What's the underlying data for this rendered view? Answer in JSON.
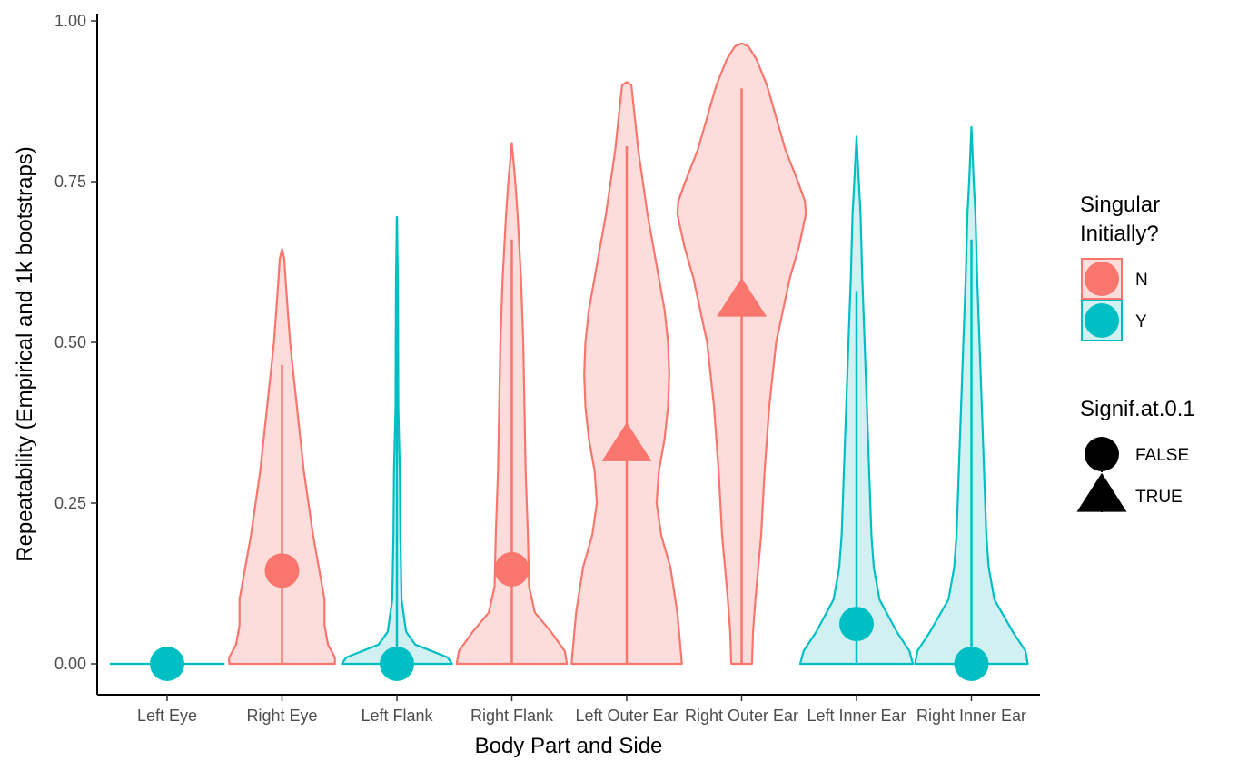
{
  "chart_data": {
    "type": "violin",
    "xlabel": "Body Part and Side",
    "ylabel": "Repeatability (Empirical and 1k bootstraps)",
    "ylim": [
      0,
      1
    ],
    "y_ticks": [
      "0.00",
      "0.25",
      "0.50",
      "0.75",
      "1.00"
    ],
    "y_tick_values": [
      0,
      0.25,
      0.5,
      0.75,
      1.0
    ],
    "categories": [
      "Left Eye",
      "Right Eye",
      "Left Flank",
      "Right Flank",
      "Left Outer Ear",
      "Right Outer Ear",
      "Left Inner Ear",
      "Right Inner Ear"
    ],
    "colors": {
      "N": "#F8766D",
      "Y": "#00BFC4",
      "N_fill": "#FCDDDB",
      "Y_fill": "#D0F0F1"
    },
    "groups": [
      {
        "category": "Left Eye",
        "singular": "Y",
        "signif": "FALSE",
        "empirical": 0.0,
        "boot_max": 0.0,
        "violin": [
          [
            0.0,
            0.5
          ]
        ]
      },
      {
        "category": "Right Eye",
        "singular": "N",
        "signif": "FALSE",
        "empirical": 0.145,
        "boot_max": 0.645,
        "line_top": 0.465,
        "violin": [
          [
            0.0,
            0.46
          ],
          [
            0.01,
            0.46
          ],
          [
            0.03,
            0.4
          ],
          [
            0.06,
            0.37
          ],
          [
            0.1,
            0.37
          ],
          [
            0.15,
            0.32
          ],
          [
            0.2,
            0.27
          ],
          [
            0.25,
            0.23
          ],
          [
            0.3,
            0.19
          ],
          [
            0.35,
            0.16
          ],
          [
            0.4,
            0.13
          ],
          [
            0.45,
            0.1
          ],
          [
            0.5,
            0.07
          ],
          [
            0.55,
            0.05
          ],
          [
            0.6,
            0.03
          ],
          [
            0.63,
            0.02
          ],
          [
            0.645,
            0.0
          ]
        ]
      },
      {
        "category": "Left Flank",
        "singular": "Y",
        "signif": "FALSE",
        "empirical": 0.0,
        "boot_max": 0.695,
        "line_top": 0.695,
        "violin": [
          [
            0.0,
            0.48
          ],
          [
            0.01,
            0.44
          ],
          [
            0.02,
            0.3
          ],
          [
            0.03,
            0.16
          ],
          [
            0.05,
            0.08
          ],
          [
            0.1,
            0.04
          ],
          [
            0.2,
            0.03
          ],
          [
            0.3,
            0.025
          ],
          [
            0.4,
            0.012
          ],
          [
            0.5,
            0.01
          ],
          [
            0.6,
            0.008
          ],
          [
            0.695,
            0.0
          ]
        ]
      },
      {
        "category": "Right Flank",
        "singular": "N",
        "signif": "FALSE",
        "empirical": 0.147,
        "boot_max": 0.81,
        "line_top": 0.66,
        "violin": [
          [
            0.0,
            0.48
          ],
          [
            0.02,
            0.46
          ],
          [
            0.05,
            0.34
          ],
          [
            0.08,
            0.2
          ],
          [
            0.12,
            0.15
          ],
          [
            0.2,
            0.14
          ],
          [
            0.3,
            0.12
          ],
          [
            0.4,
            0.11
          ],
          [
            0.5,
            0.1
          ],
          [
            0.6,
            0.08
          ],
          [
            0.7,
            0.05
          ],
          [
            0.75,
            0.03
          ],
          [
            0.81,
            0.0
          ]
        ]
      },
      {
        "category": "Left Outer Ear",
        "singular": "N",
        "signif": "TRUE",
        "empirical": 0.34,
        "boot_max": 0.905,
        "line_top": 0.805,
        "violin": [
          [
            0.0,
            0.48
          ],
          [
            0.02,
            0.47
          ],
          [
            0.08,
            0.44
          ],
          [
            0.15,
            0.38
          ],
          [
            0.2,
            0.3
          ],
          [
            0.25,
            0.26
          ],
          [
            0.3,
            0.28
          ],
          [
            0.35,
            0.33
          ],
          [
            0.4,
            0.36
          ],
          [
            0.45,
            0.37
          ],
          [
            0.5,
            0.36
          ],
          [
            0.55,
            0.33
          ],
          [
            0.6,
            0.28
          ],
          [
            0.7,
            0.18
          ],
          [
            0.8,
            0.1
          ],
          [
            0.85,
            0.07
          ],
          [
            0.9,
            0.04
          ],
          [
            0.905,
            0.0
          ]
        ]
      },
      {
        "category": "Right Outer Ear",
        "singular": "N",
        "signif": "TRUE",
        "empirical": 0.565,
        "boot_max": 0.965,
        "line_top": 0.895,
        "violin": [
          [
            0.0,
            0.09
          ],
          [
            0.05,
            0.1
          ],
          [
            0.1,
            0.12
          ],
          [
            0.2,
            0.17
          ],
          [
            0.3,
            0.2
          ],
          [
            0.4,
            0.24
          ],
          [
            0.5,
            0.3
          ],
          [
            0.6,
            0.42
          ],
          [
            0.65,
            0.5
          ],
          [
            0.7,
            0.56
          ],
          [
            0.72,
            0.55
          ],
          [
            0.75,
            0.49
          ],
          [
            0.8,
            0.38
          ],
          [
            0.85,
            0.3
          ],
          [
            0.9,
            0.22
          ],
          [
            0.94,
            0.13
          ],
          [
            0.96,
            0.06
          ],
          [
            0.965,
            0.0
          ]
        ]
      },
      {
        "category": "Left Inner Ear",
        "singular": "Y",
        "signif": "FALSE",
        "empirical": 0.062,
        "boot_max": 0.82,
        "line_top": 0.58,
        "violin": [
          [
            0.0,
            0.49
          ],
          [
            0.02,
            0.46
          ],
          [
            0.05,
            0.35
          ],
          [
            0.1,
            0.2
          ],
          [
            0.15,
            0.15
          ],
          [
            0.2,
            0.13
          ],
          [
            0.3,
            0.11
          ],
          [
            0.4,
            0.09
          ],
          [
            0.5,
            0.07
          ],
          [
            0.6,
            0.05
          ],
          [
            0.7,
            0.035
          ],
          [
            0.75,
            0.02
          ],
          [
            0.82,
            0.0
          ]
        ]
      },
      {
        "category": "Right Inner Ear",
        "singular": "Y",
        "signif": "FALSE",
        "empirical": 0.0,
        "boot_max": 0.835,
        "line_top": 0.66,
        "violin": [
          [
            0.0,
            0.49
          ],
          [
            0.02,
            0.47
          ],
          [
            0.05,
            0.36
          ],
          [
            0.1,
            0.2
          ],
          [
            0.15,
            0.15
          ],
          [
            0.2,
            0.13
          ],
          [
            0.3,
            0.11
          ],
          [
            0.4,
            0.09
          ],
          [
            0.5,
            0.07
          ],
          [
            0.6,
            0.05
          ],
          [
            0.7,
            0.035
          ],
          [
            0.75,
            0.02
          ],
          [
            0.835,
            0.0
          ]
        ]
      }
    ],
    "legend": {
      "position": "right",
      "color_title": "Singular\nInitially?",
      "color_title_lines": [
        "Singular",
        "Initially?"
      ],
      "color_entries": [
        {
          "label": "N",
          "color": "#F8766D"
        },
        {
          "label": "Y",
          "color": "#00BFC4"
        }
      ],
      "shape_title": "Signif.at.0.1",
      "shape_entries": [
        {
          "label": "FALSE",
          "shape": "circle"
        },
        {
          "label": "TRUE",
          "shape": "triangle"
        }
      ]
    },
    "grid": false
  }
}
